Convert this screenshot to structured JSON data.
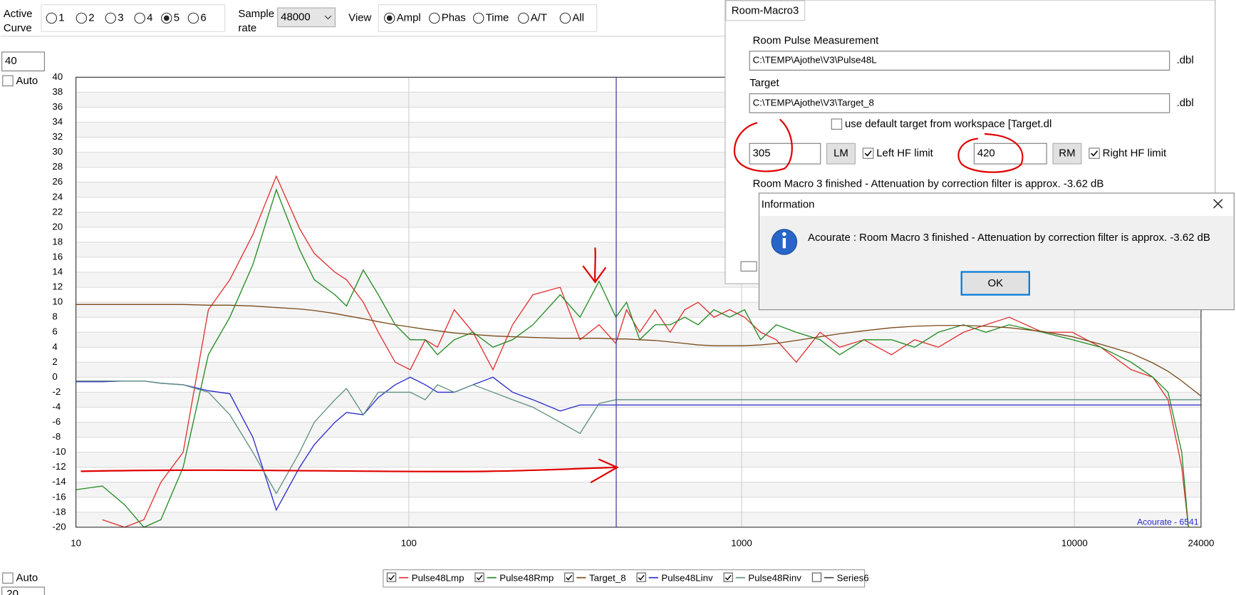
{
  "toolbar": {
    "active_curve_label": [
      "Active",
      "Curve"
    ],
    "curves": [
      "1",
      "2",
      "3",
      "4",
      "5",
      "6"
    ],
    "active_curve": "5",
    "sample_rate_label": [
      "Sample",
      "rate"
    ],
    "sample_rate": "48000",
    "view_label": "View",
    "views": [
      "Ampl",
      "Phas",
      "Time",
      "A/T",
      "All"
    ],
    "active_view": "Ampl"
  },
  "left_panel": {
    "top_input": "40",
    "top_auto": "Auto",
    "top_auto_checked": false,
    "bottom_auto": "Auto",
    "bottom_auto_checked": false,
    "bottom_input": "20"
  },
  "chart_data": {
    "type": "line",
    "log_x": true,
    "grid": true,
    "xlim": [
      10,
      24000
    ],
    "xticks": [
      10,
      100,
      1000,
      10000,
      24000
    ],
    "ylim": [
      -20,
      40
    ],
    "yticks": [
      -20,
      -18,
      -16,
      -14,
      -12,
      -10,
      -8,
      -6,
      -4,
      -2,
      0,
      2,
      4,
      6,
      8,
      10,
      12,
      14,
      16,
      18,
      20,
      22,
      24,
      26,
      28,
      30,
      32,
      34,
      36,
      38,
      40
    ],
    "cursor_x": 420,
    "watermark": "Acourate - 6541",
    "x": [
      10,
      12,
      14,
      16,
      18,
      21,
      25,
      29,
      34,
      40,
      47,
      52,
      60,
      65,
      73,
      81,
      91,
      101,
      112,
      122,
      137,
      156,
      179,
      205,
      236,
      285,
      327,
      373,
      419,
      451,
      494,
      550,
      610,
      675,
      740,
      826,
      920,
      1020,
      1140,
      1270,
      1460,
      1720,
      1970,
      2330,
      2820,
      3310,
      3900,
      4640,
      5420,
      6370,
      8010,
      9860,
      12000,
      14800,
      17200,
      19100,
      21000,
      22000,
      24000
    ],
    "series": [
      {
        "name": "Pulse48Lmp",
        "color": "#e03030",
        "checked": true,
        "values": [
          null,
          -19,
          -20,
          -19,
          -14,
          -10,
          9,
          13,
          19,
          26.8,
          19.8,
          16.5,
          14,
          13,
          10,
          6,
          2,
          1,
          5,
          4,
          9,
          6,
          1,
          7,
          11,
          12,
          5,
          7,
          4.5,
          9,
          6,
          9,
          6,
          9,
          10,
          8,
          9,
          8,
          6,
          5,
          2,
          6,
          4,
          5,
          3,
          5,
          4,
          6,
          7,
          8,
          6,
          6,
          4,
          1,
          0,
          -3,
          -12,
          -20,
          null
        ]
      },
      {
        "name": "Pulse48Rmp",
        "color": "#228b22",
        "checked": true,
        "values": [
          -15,
          -14.5,
          -17,
          -20,
          -19,
          -12,
          3,
          8,
          15,
          25,
          17,
          13,
          11,
          9.5,
          14.3,
          11,
          7,
          5,
          5,
          3,
          5,
          6,
          4,
          5,
          7,
          11,
          8,
          12.8,
          8,
          10,
          5,
          7,
          7,
          8,
          7,
          9,
          8,
          9,
          5,
          7,
          6,
          5,
          3,
          5,
          5,
          4,
          6,
          7,
          6,
          7,
          6,
          5,
          4,
          2,
          0,
          -2,
          -10,
          -20,
          null
        ]
      },
      {
        "name": "Target_8",
        "color": "#7a4a1a",
        "checked": true,
        "values": [
          9.7,
          9.7,
          9.7,
          9.7,
          9.7,
          9.7,
          9.6,
          9.6,
          9.5,
          9.3,
          9.1,
          8.9,
          8.5,
          8.2,
          7.8,
          7.4,
          7,
          6.7,
          6.4,
          6.2,
          5.9,
          5.7,
          5.5,
          5.4,
          5.3,
          5.2,
          5.2,
          5.2,
          5.1,
          5.1,
          5,
          4.9,
          4.7,
          4.5,
          4.3,
          4.2,
          4.2,
          4.2,
          4.3,
          4.5,
          4.9,
          5.4,
          5.8,
          6.2,
          6.6,
          6.8,
          6.9,
          6.9,
          6.8,
          6.6,
          6.1,
          5.4,
          4.4,
          3.2,
          1.9,
          0.8,
          -0.5,
          -1.2,
          -2.5
        ]
      },
      {
        "name": "Pulse48Linv",
        "color": "#2a2acc",
        "checked": true,
        "values": [
          -0.6,
          -0.6,
          -0.5,
          -0.5,
          -0.8,
          -1,
          -1.8,
          -2.2,
          -8,
          -17.7,
          -12,
          -9,
          -6,
          -4.7,
          -5,
          -2.7,
          -1,
          0,
          -1,
          -2,
          -2,
          -1,
          0,
          -2,
          -3,
          -4.5,
          -3.7,
          -3.7,
          -3.7,
          -3.7,
          -3.7,
          -3.7,
          -3.7,
          -3.7,
          -3.7,
          -3.7,
          -3.7,
          -3.7,
          -3.7,
          -3.7,
          -3.7,
          -3.7,
          -3.7,
          -3.7,
          -3.7,
          -3.7,
          -3.7,
          -3.7,
          -3.7,
          -3.7,
          -3.7,
          -3.7,
          -3.7,
          -3.7,
          -3.7,
          -3.7,
          -3.7,
          -3.7,
          -3.7
        ]
      },
      {
        "name": "Pulse48Rinv",
        "color": "#5f8f80",
        "checked": true,
        "values": [
          -0.5,
          -0.5,
          -0.5,
          -0.5,
          -0.8,
          -1,
          -2,
          -5,
          -10,
          -15.5,
          -10,
          -6,
          -3,
          -1.5,
          -5,
          -2,
          -2,
          -2,
          -3,
          -1,
          -2,
          -1,
          -2,
          -3,
          -4,
          -6,
          -7.5,
          -3.5,
          -3,
          -3,
          -3,
          -3,
          -3,
          -3,
          -3,
          -3,
          -3,
          -3,
          -3,
          -3,
          -3,
          -3,
          -3,
          -3,
          -3,
          -3,
          -3,
          -3,
          -3,
          -3,
          -3,
          -3,
          -3,
          -3,
          -3,
          -3,
          -3,
          -3,
          -3
        ]
      },
      {
        "name": "Series6",
        "color": "#444444",
        "checked": false
      }
    ]
  },
  "room_macro": {
    "title": "Room-Macro3",
    "pulse_label": "Room Pulse Measurement",
    "pulse_path": "C:\\TEMP\\Ajothe\\V3\\Pulse48L",
    "pulse_ext": ".dbl",
    "target_label": "Target",
    "target_path": "C:\\TEMP\\Ajothe\\V3\\Target_8",
    "target_ext": ".dbl",
    "default_target": "use default target from workspace [Target.dl",
    "default_target_checked": false,
    "left_value": "305",
    "left_button": "LM",
    "left_hf": "Left HF limit",
    "left_hf_checked": true,
    "right_value": "420",
    "right_button": "RM",
    "right_hf": "Right HF limit",
    "right_hf_checked": true,
    "status": "Room Macro 3 finished - Attenuation by correction filter is approx. -3.62 dB"
  },
  "info_dialog": {
    "title": "Information",
    "message": "Acourate :  Room Macro 3 finished - Attenuation by correction filter is approx. -3.62 dB",
    "ok": "OK"
  }
}
